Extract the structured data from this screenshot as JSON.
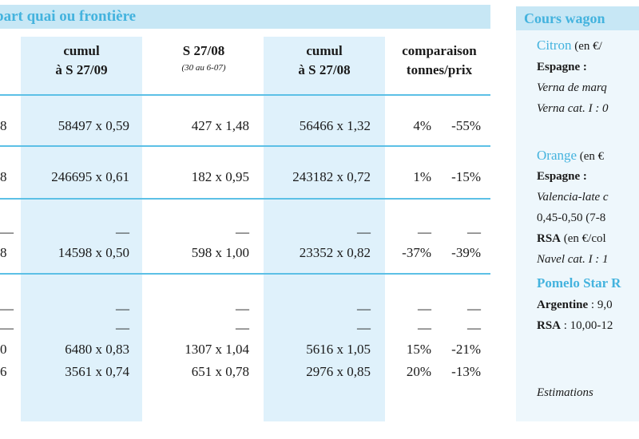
{
  "left": {
    "title": "part quai ou frontière",
    "headers": {
      "cumul1": [
        "cumul",
        "à S 27/09"
      ],
      "s2708": [
        "S 27/08"
      ],
      "s2708_sub": "(30 au 6-07)",
      "cumul2": [
        "cumul",
        "à S 27/08"
      ],
      "comparaison": [
        "comparaison",
        "tonnes/prix"
      ]
    },
    "rows": [
      {
        "frag": "8",
        "c1": "58497 x 0,59",
        "c2": "427 x 1,48",
        "c3": "56466 x 1,32",
        "t": "4%",
        "p": "-55%"
      },
      {
        "frag": "8",
        "c1": "246695 x 0,61",
        "c2": "182 x 0,95",
        "c3": "243182 x 0,72",
        "t": "1%",
        "p": "-15%"
      },
      {
        "frag": "8",
        "c1": "14598 x 0,50",
        "c2": "598 x 1,00",
        "c3": "23352 x 0,82",
        "t": "-37%",
        "p": "-39%"
      },
      {
        "frag": "0",
        "c1": "6480 x 0,83",
        "c2": "1307 x 1,04",
        "c3": "5616 x 1,05",
        "t": "15%",
        "p": "-21%"
      },
      {
        "frag": "6",
        "c1": "3561 x 0,74",
        "c2": "651 x 0,78",
        "c3": "2976 x 0,85",
        "t": "20%",
        "p": "-13%"
      }
    ],
    "dash": "—"
  },
  "right": {
    "title": "Cours wagon",
    "citron_label": "Citron",
    "citron_unit": "(en €/",
    "espagne": "Espagne :",
    "verna_marque": "Verna de marq",
    "verna_cat": "Verna cat. I : 0",
    "orange_label": "Orange",
    "orange_unit": "(en €",
    "espagne2": "Espagne :",
    "valencia": "Valencia-late c",
    "valencia_price": "0,45-0,50 (7-8",
    "rsa": "RSA",
    "rsa_unit": "(en €/col",
    "navel": "Navel cat. I : 1",
    "pomelo": "Pomelo Star R",
    "argentine": "Argentine",
    "argentine_val": ": 9,0",
    "rsa2": "RSA",
    "rsa2_val": ": 10,00-12",
    "estimations": "Estimations"
  }
}
